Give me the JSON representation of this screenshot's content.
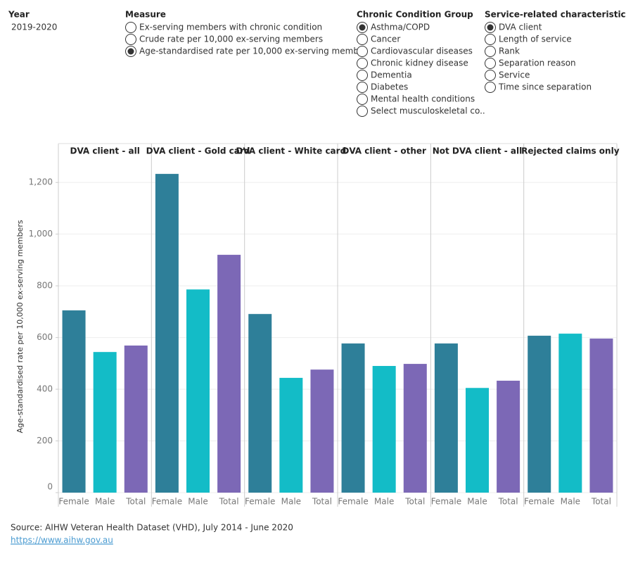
{
  "filters": {
    "year": {
      "title": "Year",
      "value": "2019-2020"
    },
    "measure": {
      "title": "Measure",
      "options": [
        "Ex-serving members with chronic condition",
        "Crude rate per 10,000 ex-serving members",
        "Age-standardised rate per 10,000 ex-serving memb.."
      ],
      "selected": 2
    },
    "condition": {
      "title": "Chronic Condition Group",
      "options": [
        "Asthma/COPD",
        "Cancer",
        "Cardiovascular diseases",
        "Chronic kidney disease",
        "Dementia",
        "Diabetes",
        "Mental health conditions",
        "Select musculoskeletal co.."
      ],
      "selected": 0
    },
    "characteristic": {
      "title": "Service-related characteristic",
      "options": [
        "DVA client",
        "Length of service",
        "Rank",
        "Separation reason",
        "Service",
        "Time since separation"
      ],
      "selected": 0
    }
  },
  "chart_data": {
    "type": "bar",
    "ylabel": "Age-standardised rate per 10,000 ex-serving members",
    "ylim": [
      0,
      1285
    ],
    "yticks": [
      0,
      200,
      400,
      600,
      800,
      {
        "value": 1000,
        "label": "1,000"
      },
      {
        "value": 1200,
        "label": "1,200"
      }
    ],
    "grid": true,
    "colors": [
      "#2e7f99",
      "#13bcc7",
      "#7c68b6"
    ],
    "facets": [
      {
        "title": "DVA client - all",
        "categories": [
          "Female",
          "Male",
          "Total"
        ],
        "values": [
          705,
          544,
          569
        ]
      },
      {
        "title": "DVA client - Gold card",
        "categories": [
          "Female",
          "Male",
          "Total"
        ],
        "values": [
          1233,
          786,
          920
        ]
      },
      {
        "title": "DVA client - White card",
        "categories": [
          "Female",
          "Male",
          "Total"
        ],
        "values": [
          691,
          444,
          476
        ]
      },
      {
        "title": "DVA client - other",
        "categories": [
          "Female",
          "Male",
          "Total"
        ],
        "values": [
          577,
          490,
          498
        ]
      },
      {
        "title": "Not DVA client - all",
        "categories": [
          "Female",
          "Male",
          "Total"
        ],
        "values": [
          577,
          405,
          433
        ]
      },
      {
        "title": "Rejected claims only",
        "categories": [
          "Female",
          "Male",
          "Total"
        ],
        "values": [
          607,
          615,
          596
        ]
      }
    ]
  },
  "footer": {
    "source": "Source: AIHW Veteran Health Dataset (VHD), July 2014 - June 2020",
    "link": "https://www.aihw.gov.au"
  }
}
